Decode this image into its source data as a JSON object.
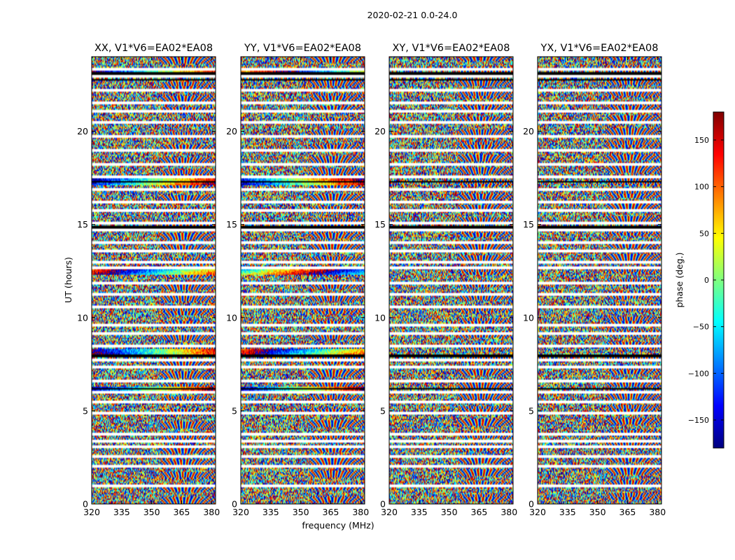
{
  "figure_title": "2020-02-21 0.0-24.0",
  "chart_data": [
    {
      "type": "heatmap",
      "title": "XX, V1*V6=EA02*EA08",
      "xlabel": "frequency (MHz)",
      "ylabel": "UT (hours)",
      "xlim": [
        320,
        382
      ],
      "ylim": [
        0,
        24
      ],
      "xticks": [
        320,
        335,
        350,
        365,
        380
      ],
      "yticks": [
        0,
        5,
        10,
        15,
        20
      ]
    },
    {
      "type": "heatmap",
      "title": "YY, V1*V6=EA02*EA08",
      "xlabel": "frequency (MHz)",
      "ylabel": "UT (hours)",
      "xlim": [
        320,
        382
      ],
      "ylim": [
        0,
        24
      ],
      "xticks": [
        320,
        335,
        350,
        365,
        380
      ],
      "yticks": [
        0,
        5,
        10,
        15,
        20
      ]
    },
    {
      "type": "heatmap",
      "title": "XY, V1*V6=EA02*EA08",
      "xlabel": "frequency (MHz)",
      "ylabel": "UT (hours)",
      "xlim": [
        320,
        382
      ],
      "ylim": [
        0,
        24
      ],
      "xticks": [
        320,
        335,
        350,
        365,
        380
      ],
      "yticks": [
        0,
        5,
        10,
        15,
        20
      ]
    },
    {
      "type": "heatmap",
      "title": "YX, V1*V6=EA02*EA08",
      "xlabel": "frequency (MHz)",
      "ylabel": "UT (hours)",
      "xlim": [
        320,
        382
      ],
      "ylim": [
        0,
        24
      ],
      "xticks": [
        320,
        335,
        350,
        365,
        380
      ],
      "yticks": [
        0,
        5,
        10,
        15,
        20
      ]
    }
  ],
  "shared": {
    "xlabel": "frequency (MHz)",
    "ylabel": "UT (hours)"
  },
  "colorbar": {
    "label": "phase (deg.)",
    "range": [
      -180,
      180
    ],
    "ticks": [
      -150,
      -100,
      -50,
      0,
      50,
      100,
      150
    ],
    "colormap": "jet",
    "stops": [
      "#00007f",
      "#0000ff",
      "#007fff",
      "#00ffff",
      "#7fff7f",
      "#ffff00",
      "#ff7f00",
      "#ff0000",
      "#7f0000"
    ]
  },
  "flagged_rows_hours": [
    0.95,
    2.0,
    2.55,
    3.05,
    3.4,
    3.75,
    4.9,
    5.5,
    6.0,
    6.6,
    7.35,
    7.75,
    8.5,
    9.15,
    9.6,
    10.55,
    11.25,
    11.85,
    12.65,
    13.0,
    13.55,
    14.05,
    14.7,
    15.1,
    15.75,
    16.2,
    16.85,
    17.55,
    18.2,
    19.0,
    19.7,
    20.5,
    21.1,
    21.5,
    22.2,
    22.95,
    23.35
  ],
  "dark_rows_hours": [
    23.1,
    22.75,
    17.3,
    14.85,
    7.95,
    6.2
  ],
  "strong_rows_hours": [
    23.1,
    17.3,
    12.5,
    8.1,
    6.1
  ]
}
